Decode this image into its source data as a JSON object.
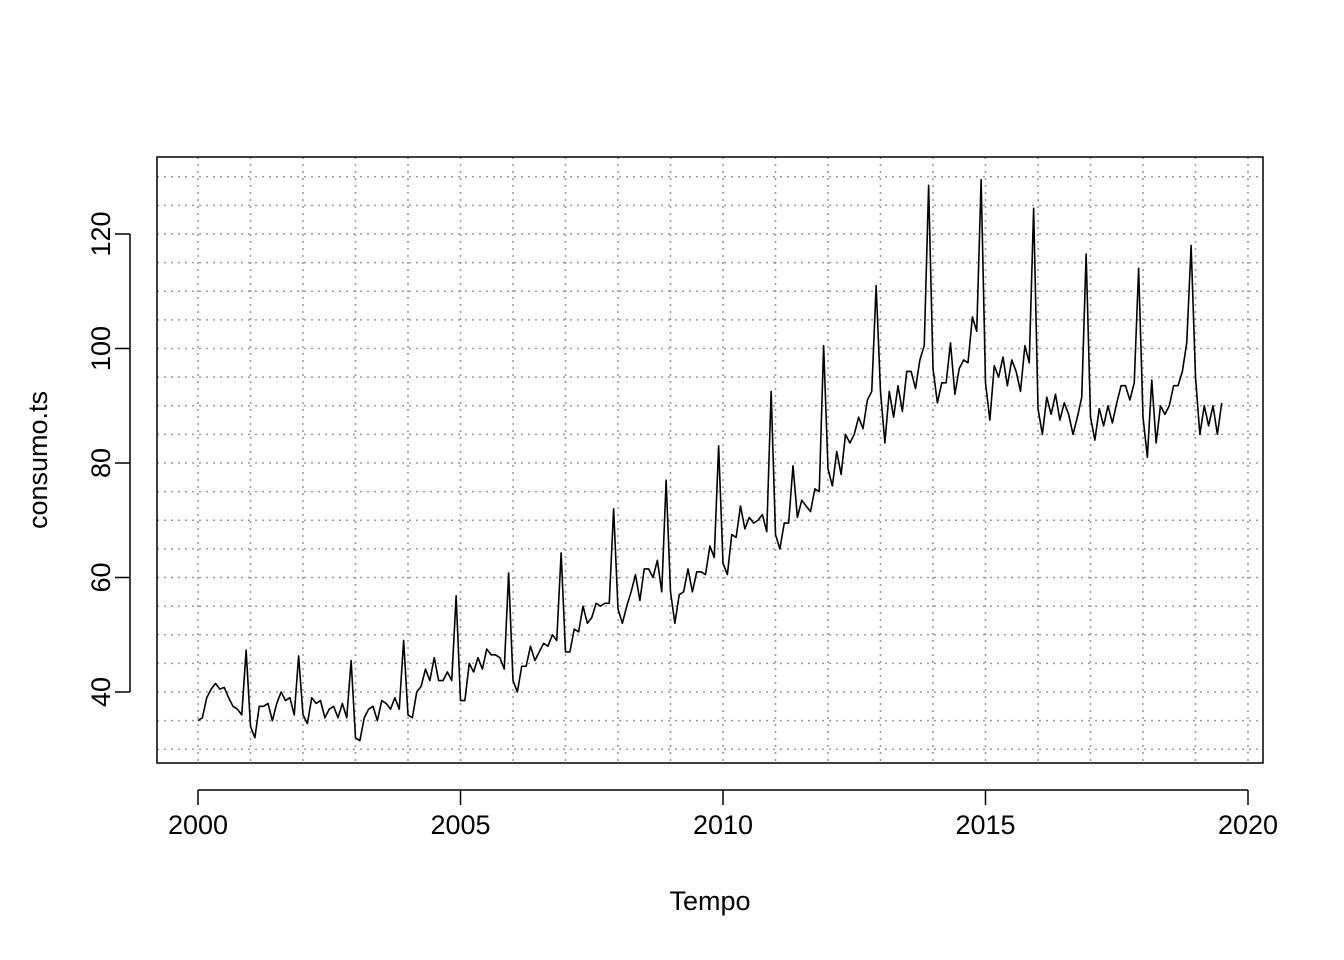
{
  "chart_data": {
    "type": "line",
    "xlabel": "Tempo",
    "ylabel": "consumo.ts",
    "xlim": [
      2000,
      2020
    ],
    "ylim": [
      28,
      135
    ],
    "x_ticks": [
      2000,
      2005,
      2010,
      2015,
      2020
    ],
    "x_tick_labels": [
      "2000",
      "2005",
      "2010",
      "2015",
      "2020"
    ],
    "y_ticks": [
      40,
      60,
      80,
      100,
      120
    ],
    "y_tick_labels": [
      "40",
      "60",
      "80",
      "100",
      "120"
    ],
    "grid": true,
    "grid_style": "dotted",
    "line_color": "#000000",
    "start": 2000,
    "frequency": 12,
    "series": [
      {
        "values": [
          35,
          35.5,
          39,
          40.5,
          41.5,
          40.5,
          40.8,
          39,
          37.5,
          37,
          36,
          47.3,
          34,
          32,
          37.5,
          37.5,
          38,
          35,
          38,
          40,
          38.5,
          39,
          36,
          46.3,
          36,
          34.5,
          39,
          38,
          38.5,
          35.5,
          37,
          37.5,
          35.5,
          38,
          35.5,
          45.5,
          32,
          31.5,
          35.5,
          37,
          37.5,
          35,
          38.5,
          38,
          37,
          39,
          37,
          49,
          36,
          35.5,
          40,
          41,
          44,
          42,
          46,
          42,
          42,
          43.5,
          42,
          56.8,
          38.5,
          38.5,
          45,
          43.5,
          46,
          44,
          47.5,
          46.5,
          46.5,
          46,
          44,
          60.8,
          42,
          40,
          44.5,
          44.5,
          48,
          45.5,
          47,
          48.5,
          48,
          50,
          49,
          64.3,
          47,
          47,
          51,
          50.5,
          55,
          52,
          53,
          55.5,
          55,
          55.5,
          55.5,
          72,
          54.5,
          52,
          55,
          57.5,
          60.5,
          56,
          61.5,
          61.5,
          60,
          63,
          57.5,
          77,
          57.5,
          52,
          57,
          57.5,
          61.5,
          57.5,
          61,
          61,
          60.5,
          65.5,
          63.5,
          83,
          62.5,
          60.5,
          67.5,
          67,
          72.5,
          68.5,
          70.5,
          69.5,
          70,
          71,
          68,
          92.5,
          67.5,
          65,
          69.5,
          69.5,
          79.5,
          70.5,
          73.5,
          72.5,
          71.5,
          75.5,
          75,
          100.5,
          79,
          76,
          82,
          78,
          85,
          83.5,
          85,
          88,
          86,
          91,
          92.5,
          111,
          92.5,
          83.5,
          92.5,
          88,
          93.5,
          89,
          96,
          96,
          93,
          98,
          100.5,
          128.5,
          96.5,
          90.5,
          94,
          94,
          101,
          92,
          96.5,
          98,
          97.5,
          105.5,
          103,
          129.5,
          94,
          87.5,
          97,
          95,
          98.5,
          93.5,
          98,
          96,
          92.5,
          100.5,
          97.5,
          124.5,
          89.5,
          85,
          91.5,
          88.5,
          92,
          87.5,
          90.5,
          88.5,
          85,
          88,
          91.5,
          116.5,
          88,
          84,
          89.5,
          86.5,
          90,
          87,
          90.5,
          93.5,
          93.5,
          91,
          94,
          114,
          88,
          81,
          94.5,
          83.5,
          90,
          88.5,
          90,
          93.5,
          93.5,
          96,
          101,
          118,
          95,
          85,
          90,
          86.5,
          90,
          85,
          90.5
        ]
      }
    ]
  }
}
